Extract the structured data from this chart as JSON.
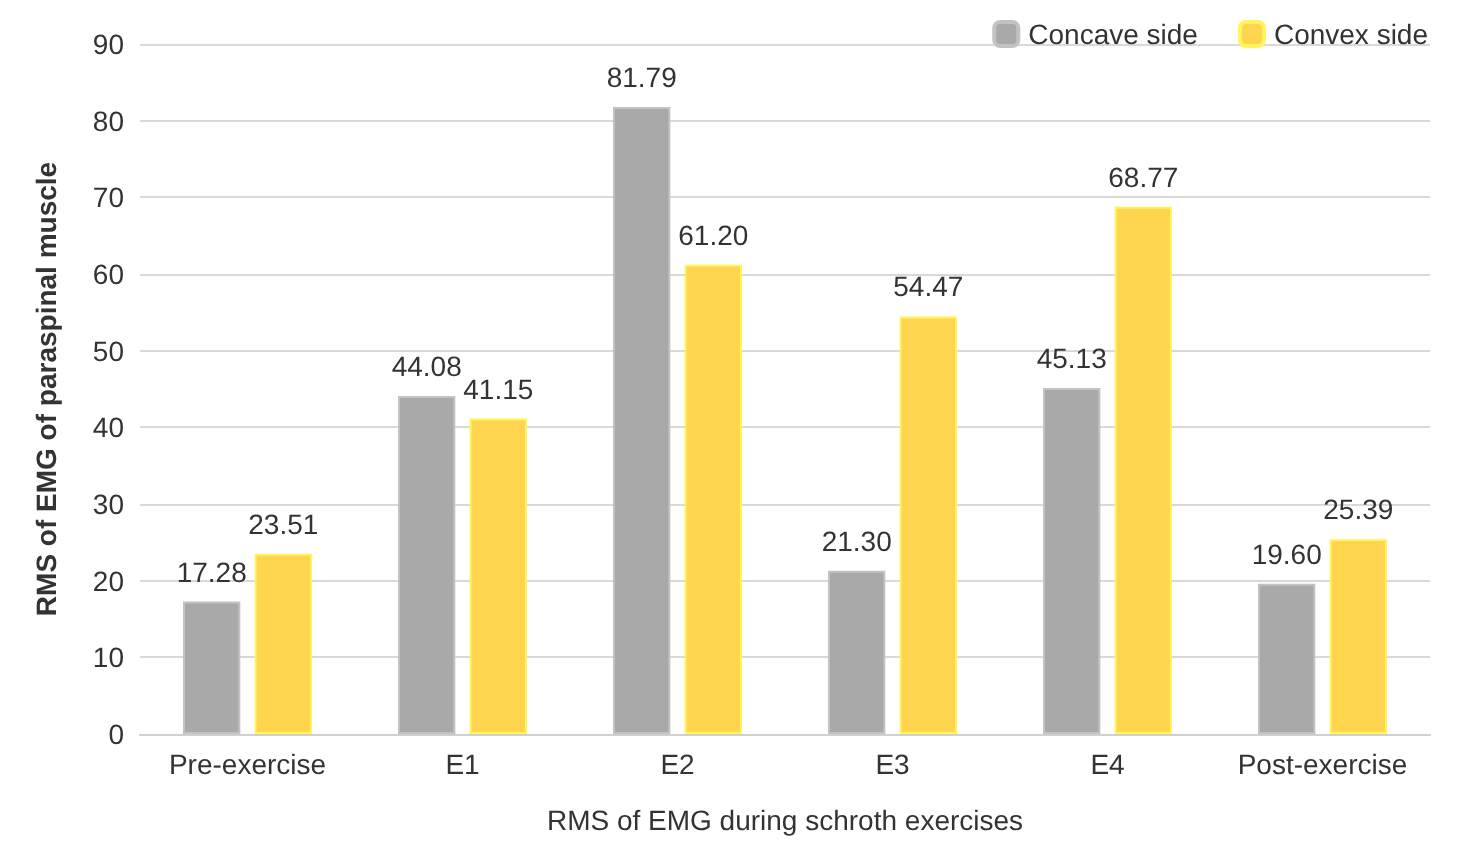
{
  "chart_data": {
    "type": "bar",
    "xlabel": "RMS of EMG during schroth exercises",
    "ylabel": "RMS of EMG of paraspinal muscle",
    "categories": [
      "Pre-exercise",
      "E1",
      "E2",
      "E3",
      "E4",
      "Post-exercise"
    ],
    "series": [
      {
        "name": "Concave side",
        "color": "#a9a9a9",
        "values": [
          17.28,
          44.08,
          81.79,
          21.3,
          45.13,
          19.6
        ]
      },
      {
        "name": "Convex side",
        "color": "#ffd54f",
        "values": [
          23.51,
          41.15,
          61.2,
          54.47,
          68.77,
          25.39
        ]
      }
    ],
    "value_labels": [
      [
        "17.28",
        "44.08",
        "81.79",
        "21.30",
        "45.13",
        "19.60"
      ],
      [
        "23.51",
        "41.15",
        "61.20",
        "54.47",
        "68.77",
        "25.39"
      ]
    ],
    "ylim": [
      0,
      90
    ],
    "yticks": [
      0,
      10,
      20,
      30,
      40,
      50,
      60,
      70,
      80,
      90
    ],
    "grid": "y",
    "legend": "top right"
  }
}
